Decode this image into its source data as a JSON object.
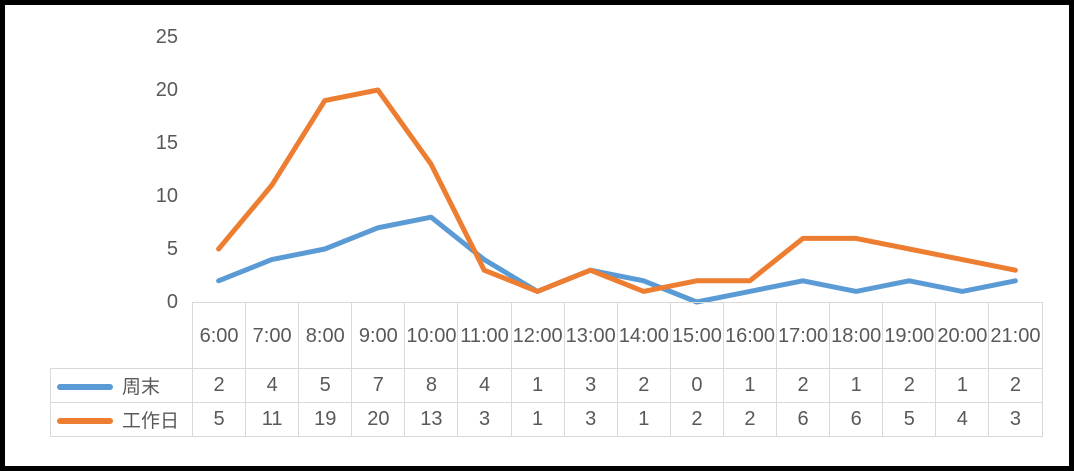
{
  "chart_data": {
    "type": "line",
    "title": "",
    "xlabel": "",
    "ylabel": "",
    "categories": [
      "6:00",
      "7:00",
      "8:00",
      "9:00",
      "10:00",
      "11:00",
      "12:00",
      "13:00",
      "14:00",
      "15:00",
      "16:00",
      "17:00",
      "18:00",
      "19:00",
      "20:00",
      "21:00"
    ],
    "series": [
      {
        "name": "周末",
        "color": "#5B9BD5",
        "values": [
          2,
          4,
          5,
          7,
          8,
          4,
          1,
          3,
          2,
          0,
          1,
          2,
          1,
          2,
          1,
          2
        ]
      },
      {
        "name": "工作日",
        "color": "#ED7D31",
        "values": [
          5,
          11,
          19,
          20,
          13,
          3,
          1,
          3,
          1,
          2,
          2,
          6,
          6,
          5,
          4,
          3
        ]
      }
    ],
    "yticks": [
      25,
      20,
      15,
      10,
      5,
      0
    ],
    "ylim": [
      0,
      25
    ],
    "grid": false,
    "legend_position": "data-table-left"
  },
  "style": {
    "series_colors": {
      "weekend": "#5B9BD5",
      "weekday": "#ED7D31"
    },
    "text_color": "#595959",
    "table_border_color": "#D9D9D9",
    "frame_border_color": "#000000",
    "background_color": "#FFFFFF"
  }
}
